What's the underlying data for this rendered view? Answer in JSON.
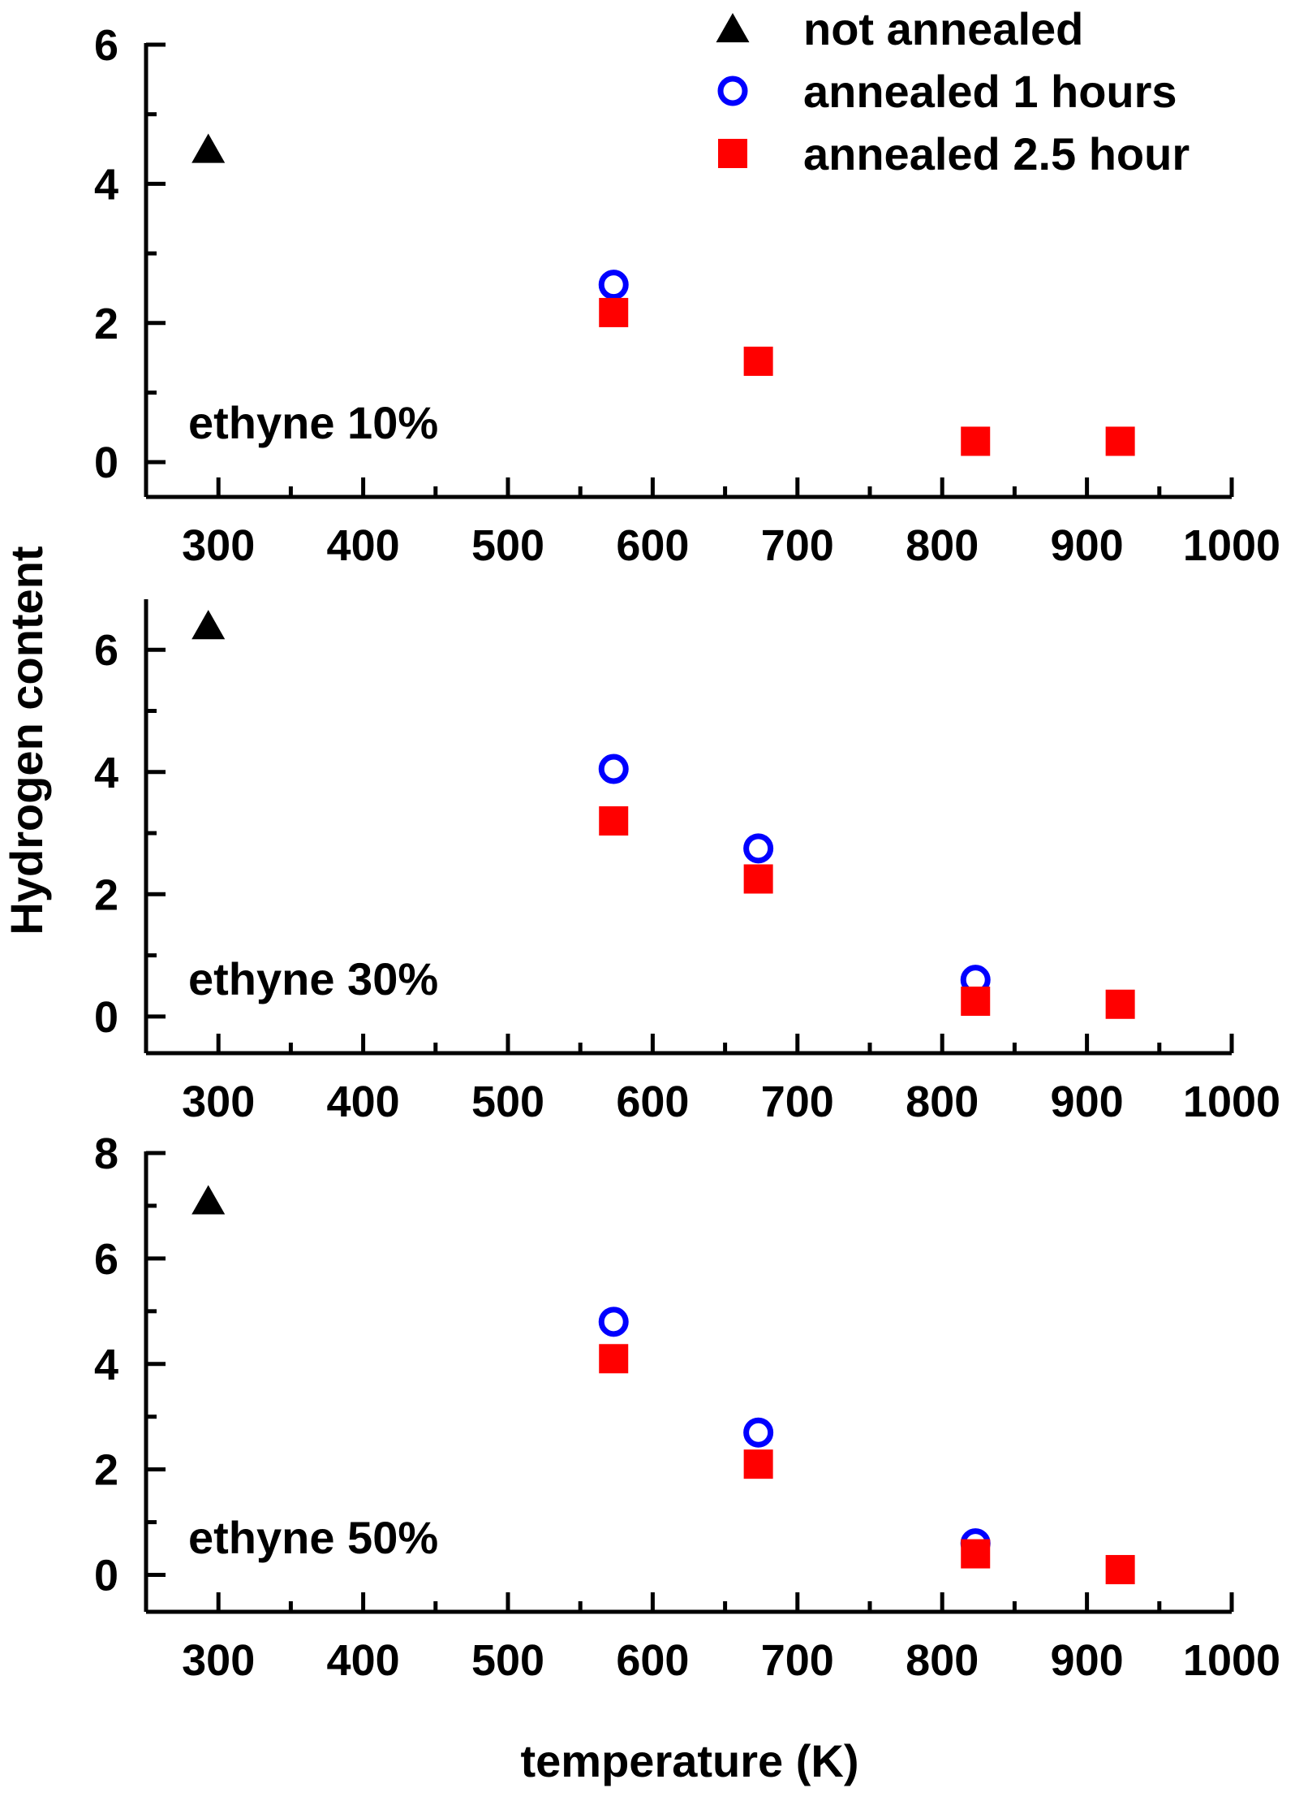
{
  "chart_data": {
    "type": "scatter",
    "ylabel": "Hydrogen content",
    "xlabel": "temperature (K)",
    "legend": {
      "placement": "top-right",
      "entries": [
        {
          "name": "not annealed",
          "marker": "triangle",
          "color": "#000000"
        },
        {
          "name": "annealed 1 hours",
          "marker": "open-circle",
          "color": "#0000ff"
        },
        {
          "name": "annealed 2.5 hour",
          "marker": "square",
          "color": "#ff0000"
        }
      ]
    },
    "xlim": [
      250,
      1000
    ],
    "xticks": [
      300,
      400,
      500,
      600,
      700,
      800,
      900,
      1000
    ],
    "panels": [
      {
        "label": "ethyne 10%",
        "ylim": [
          -0.5,
          6
        ],
        "yticks": [
          0,
          2,
          4,
          6
        ],
        "series": [
          {
            "name": "not annealed",
            "x": [
              293
            ],
            "y": [
              4.5
            ]
          },
          {
            "name": "annealed 1 hours",
            "x": [
              573
            ],
            "y": [
              2.55
            ]
          },
          {
            "name": "annealed 2.5 hour",
            "x": [
              573,
              673,
              823,
              923
            ],
            "y": [
              2.15,
              1.45,
              0.3,
              0.3
            ]
          }
        ]
      },
      {
        "label": "ethyne 30%",
        "ylim": [
          -0.6,
          6.8
        ],
        "yticks": [
          0,
          2,
          4,
          6
        ],
        "series": [
          {
            "name": "not annealed",
            "x": [
              293
            ],
            "y": [
              6.4
            ]
          },
          {
            "name": "annealed 1 hours",
            "x": [
              573,
              673,
              823
            ],
            "y": [
              4.05,
              2.75,
              0.6
            ]
          },
          {
            "name": "annealed 2.5 hour",
            "x": [
              573,
              673,
              823,
              923
            ],
            "y": [
              3.2,
              2.25,
              0.25,
              0.2
            ]
          }
        ]
      },
      {
        "label": "ethyne 50%",
        "ylim": [
          -0.7,
          8
        ],
        "yticks": [
          0,
          2,
          4,
          6,
          8
        ],
        "series": [
          {
            "name": "not annealed",
            "x": [
              293
            ],
            "y": [
              7.1
            ]
          },
          {
            "name": "annealed 1 hours",
            "x": [
              573,
              673,
              823
            ],
            "y": [
              4.8,
              2.7,
              0.6
            ]
          },
          {
            "name": "annealed 2.5 hour",
            "x": [
              573,
              673,
              823,
              923
            ],
            "y": [
              4.1,
              2.1,
              0.4,
              0.1
            ]
          }
        ]
      }
    ]
  }
}
